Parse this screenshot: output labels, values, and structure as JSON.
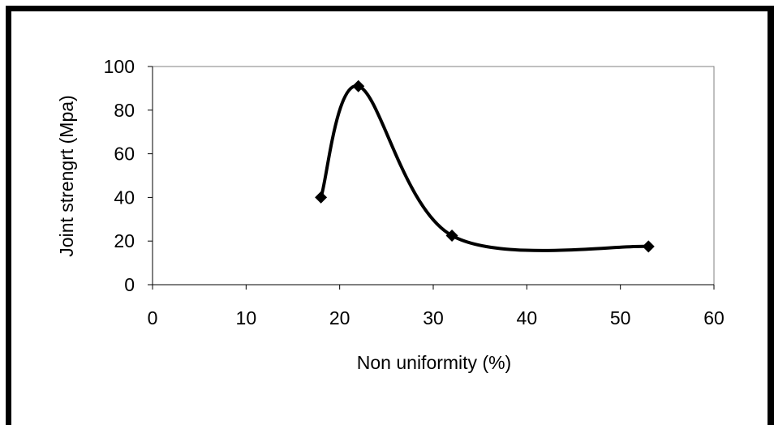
{
  "chart_data": {
    "type": "line",
    "title": "",
    "xlabel": "Non uniformity (%)",
    "ylabel": "Joint strengrt (Mpa)",
    "xlim": [
      0,
      60
    ],
    "ylim": [
      0,
      100
    ],
    "xticks": [
      0,
      10,
      20,
      30,
      40,
      50,
      60
    ],
    "yticks": [
      0,
      20,
      40,
      60,
      80,
      100
    ],
    "grid": false,
    "legend": "none",
    "series": [
      {
        "marker": "diamond",
        "smooth": true,
        "color": "#000000",
        "x": [
          18,
          22,
          32,
          53
        ],
        "y": [
          40,
          91,
          22.5,
          17.5
        ]
      }
    ]
  }
}
